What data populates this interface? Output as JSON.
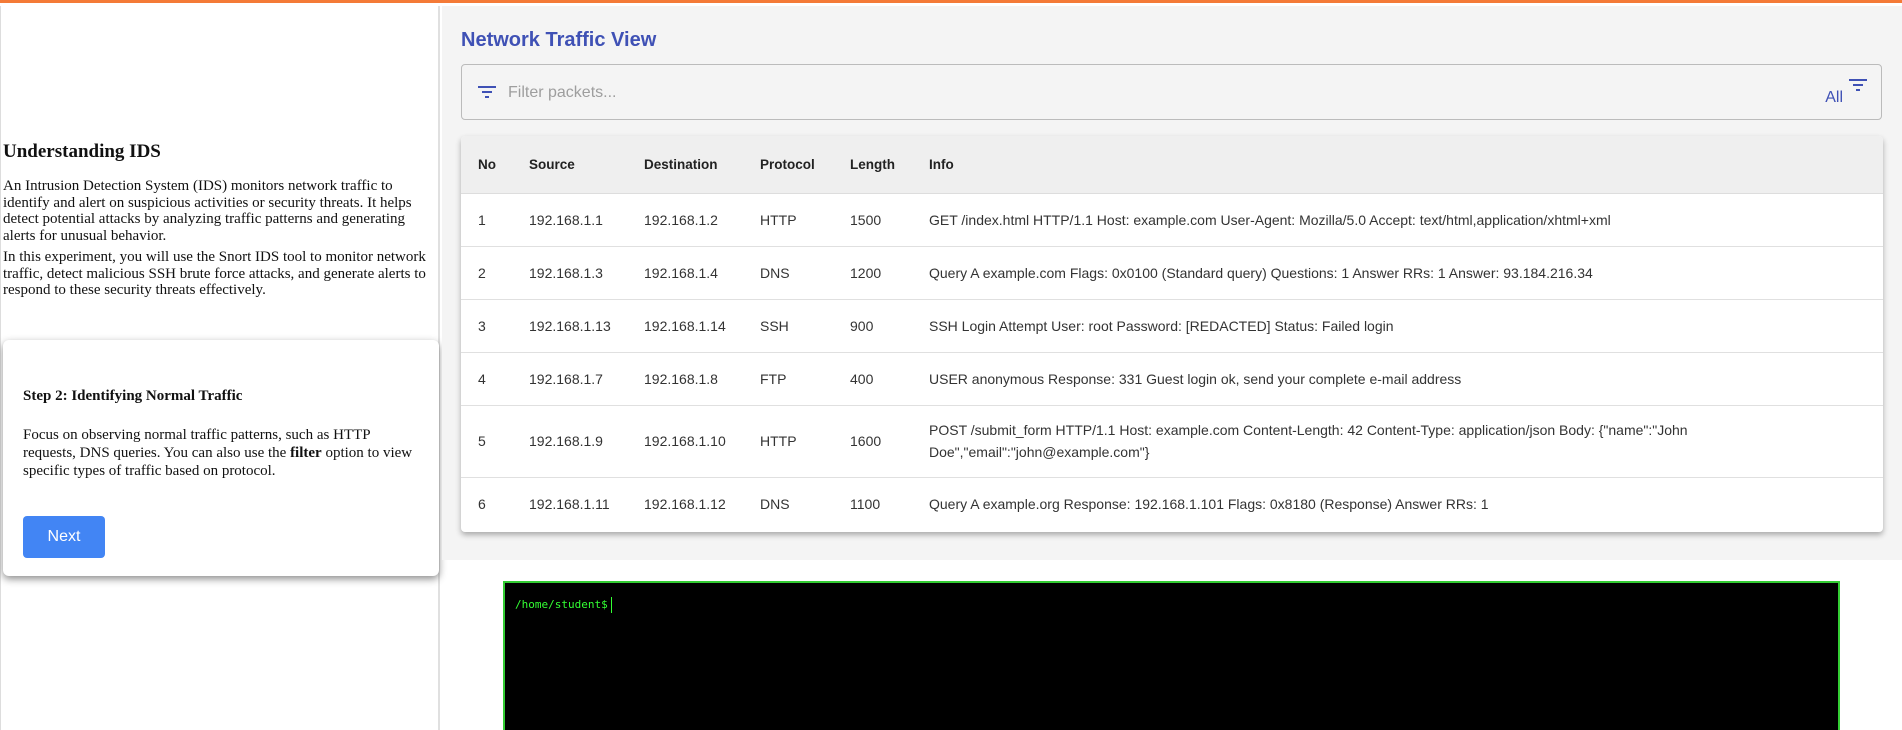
{
  "sidebar": {
    "heading": "Understanding IDS",
    "paragraphs": [
      "An Intrusion Detection System (IDS) monitors network traffic to identify and alert on suspicious activities or security threats. It helps detect potential attacks by analyzing traffic patterns and generating alerts for unusual behavior.",
      "In this experiment, you will use the Snort IDS tool to monitor network traffic, detect malicious SSH brute force attacks, and generate alerts to respond to these security threats effectively."
    ],
    "step": {
      "title": "Step 2: Identifying Normal Traffic",
      "text_before": "Focus on observing normal traffic patterns, such as HTTP requests, DNS queries. You can also use the ",
      "text_bold": "filter",
      "text_after": " option to view specific types of traffic based on protocol.",
      "next_label": "Next"
    }
  },
  "main": {
    "title": "Network Traffic View",
    "filter": {
      "placeholder": "Filter packets...",
      "value": "",
      "protocol_selected": "All",
      "icon": "filter-list-icon"
    },
    "accent_color": "#3f51b5",
    "table": {
      "columns": [
        "No",
        "Source",
        "Destination",
        "Protocol",
        "Length",
        "Info"
      ],
      "rows": [
        [
          "1",
          "192.168.1.1",
          "192.168.1.2",
          "HTTP",
          "1500",
          "GET /index.html HTTP/1.1 Host: example.com User-Agent: Mozilla/5.0 Accept: text/html,application/xhtml+xml"
        ],
        [
          "2",
          "192.168.1.3",
          "192.168.1.4",
          "DNS",
          "1200",
          "Query A example.com Flags: 0x0100 (Standard query) Questions: 1 Answer RRs: 1 Answer: 93.184.216.34"
        ],
        [
          "3",
          "192.168.1.13",
          "192.168.1.14",
          "SSH",
          "900",
          "SSH Login Attempt User: root Password: [REDACTED] Status: Failed login"
        ],
        [
          "4",
          "192.168.1.7",
          "192.168.1.8",
          "FTP",
          "400",
          "USER anonymous Response: 331 Guest login ok, send your complete e-mail address"
        ],
        [
          "5",
          "192.168.1.9",
          "192.168.1.10",
          "HTTP",
          "1600",
          "POST /submit_form HTTP/1.1 Host: example.com Content-Length: 42 Content-Type: application/json Body: {\"name\":\"John Doe\",\"email\":\"john@example.com\"}"
        ],
        [
          "6",
          "192.168.1.11",
          "192.168.1.12",
          "DNS",
          "1100",
          "Query A example.org Response: 192.168.1.101 Flags: 0x8180 (Response) Answer RRs: 1"
        ]
      ]
    }
  },
  "terminal": {
    "prompt": "/home/student$",
    "text_color": "#33ff33"
  }
}
